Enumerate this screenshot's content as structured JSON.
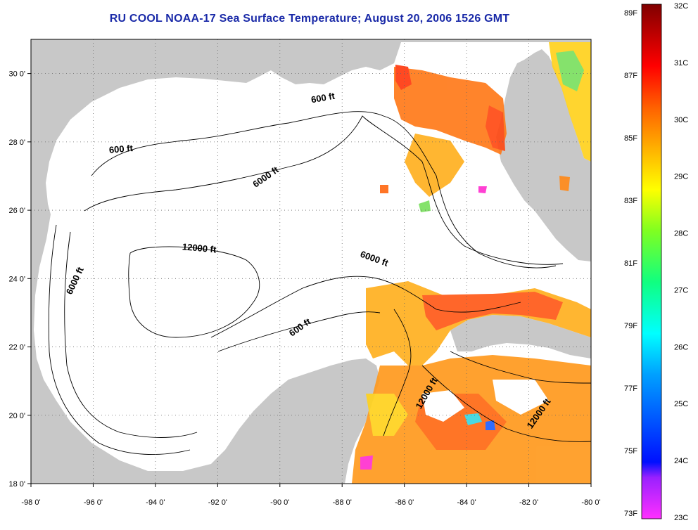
{
  "title": "RU COOL  NOAA-17  Sea Surface Temperature;  August 20, 2006 1526 GMT",
  "map": {
    "lon_range": [
      -98,
      -80
    ],
    "lat_range": [
      18,
      31
    ],
    "lon_ticks": [
      "-98 0'",
      "-96 0'",
      "-94 0'",
      "-92 0'",
      "-90 0'",
      "-88 0'",
      "-86 0'",
      "-84 0'",
      "-82 0'",
      "-80 0'"
    ],
    "lat_ticks": [
      "18 0'",
      "20 0'",
      "22 0'",
      "24 0'",
      "26 0'",
      "28 0'",
      "30 0'"
    ],
    "lat_tick_values": [
      18,
      20,
      22,
      24,
      26,
      28,
      30
    ],
    "lon_tick_values": [
      -98,
      -96,
      -94,
      -92,
      -90,
      -88,
      -86,
      -84,
      -82,
      -80
    ],
    "grid": "dotted",
    "land_color": "#c8c8c8",
    "ocean_color": "#ffffff",
    "contour_labels": [
      {
        "text": "600 ft",
        "lon": -88.6,
        "lat": 29.2,
        "angle": -10
      },
      {
        "text": "600 ft",
        "lon": -95.1,
        "lat": 27.7,
        "angle": -5
      },
      {
        "text": "6000 ft",
        "lon": -90.4,
        "lat": 26.9,
        "angle": -35
      },
      {
        "text": "12000 ft",
        "lon": -92.6,
        "lat": 24.8,
        "angle": 5
      },
      {
        "text": "6000 ft",
        "lon": -87.0,
        "lat": 24.5,
        "angle": 20
      },
      {
        "text": "6000 ft",
        "lon": -96.5,
        "lat": 23.9,
        "angle": -65
      },
      {
        "text": "600 ft",
        "lon": -89.3,
        "lat": 22.5,
        "angle": -35
      },
      {
        "text": "12000 ft",
        "lon": -85.2,
        "lat": 20.6,
        "angle": -60
      },
      {
        "text": "12000 ft",
        "lon": -81.6,
        "lat": 20.0,
        "angle": -55
      }
    ]
  },
  "colorbar": {
    "f_labels": [
      "89F",
      "87F",
      "85F",
      "83F",
      "81F",
      "79F",
      "77F",
      "75F",
      "73F"
    ],
    "c_labels": [
      "32C",
      "31C",
      "30C",
      "29C",
      "28C",
      "27C",
      "26C",
      "25C",
      "24C",
      "23C"
    ],
    "range_c": [
      23,
      32
    ]
  }
}
